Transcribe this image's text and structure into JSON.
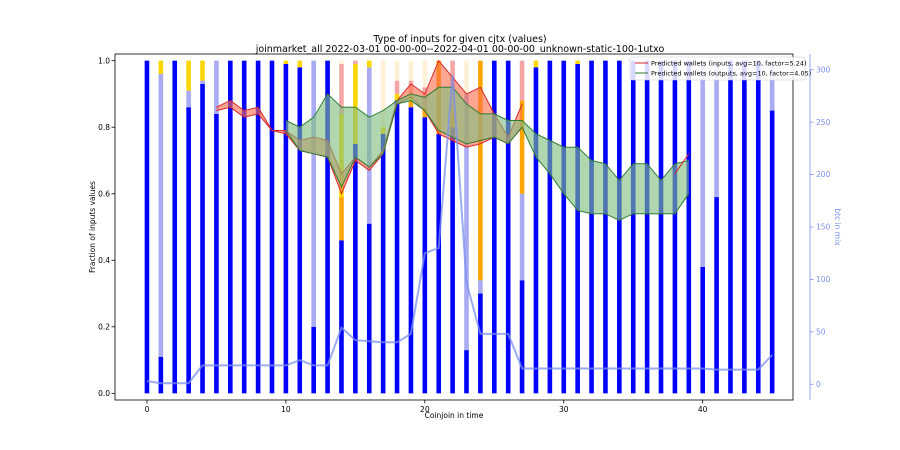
{
  "chart_data": {
    "type": "bar",
    "title": "Type of inputs for given cjtx (values)",
    "subtitle": "joinmarket_all 2022-03-01 00-00-00--2022-04-01 00-00-00_unknown-static-100-1utxo",
    "xlabel": "Coinjoin in time",
    "ylabel": "Fraction of inputs values",
    "y2label": "btc in mix",
    "xlim": [
      -2.3,
      46.5
    ],
    "ylim": [
      -0.02,
      1.02
    ],
    "y2lim": [
      -15,
      315
    ],
    "xticks": [
      0,
      10,
      20,
      30,
      40
    ],
    "yticks": [
      0.0,
      0.2,
      0.4,
      0.6,
      0.8,
      1.0
    ],
    "y2ticks": [
      0,
      50,
      100,
      150,
      200,
      250,
      300
    ],
    "legend_position": "top-right",
    "legend": [
      "Predicted wallets (inputs, avg=10, factor=5.24)",
      "Predicted wallets (outputs, avg=10, factor=4.05)"
    ],
    "colors": {
      "fresh": "#0000ff",
      "remix": "#a9abf3",
      "friends": "#ffa500",
      "prior": "#fff1d6",
      "yellow": "#ffd700",
      "pink": "#f4a6a6",
      "inputs_line": "#d62728",
      "inputs_fill": "#ff6f4f",
      "outputs_line": "#2e7d32",
      "outputs_fill": "#7fbf7f",
      "btc_line": "#7b90ee"
    },
    "stack_order": [
      "fresh",
      "remix",
      "friends",
      "yellow",
      "pink",
      "prior"
    ],
    "bars": [
      {
        "x": 0,
        "fresh": 1.0,
        "remix": 0,
        "friends": 0,
        "yellow": 0,
        "pink": 0,
        "prior": 0
      },
      {
        "x": 1,
        "fresh": 0.11,
        "remix": 0.85,
        "friends": 0,
        "yellow": 0.04,
        "pink": 0,
        "prior": 0
      },
      {
        "x": 2,
        "fresh": 1.0,
        "remix": 0,
        "friends": 0,
        "yellow": 0,
        "pink": 0,
        "prior": 0
      },
      {
        "x": 3,
        "fresh": 0.86,
        "remix": 0.05,
        "friends": 0,
        "yellow": 0.09,
        "pink": 0,
        "prior": 0
      },
      {
        "x": 4,
        "fresh": 0.93,
        "remix": 0.01,
        "friends": 0,
        "yellow": 0.06,
        "pink": 0,
        "prior": 0
      },
      {
        "x": 5,
        "fresh": 0.84,
        "remix": 0.16,
        "friends": 0,
        "yellow": 0,
        "pink": 0,
        "prior": 0
      },
      {
        "x": 6,
        "fresh": 1.0,
        "remix": 0,
        "friends": 0,
        "yellow": 0,
        "pink": 0,
        "prior": 0
      },
      {
        "x": 7,
        "fresh": 1.0,
        "remix": 0,
        "friends": 0,
        "yellow": 0,
        "pink": 0,
        "prior": 0
      },
      {
        "x": 8,
        "fresh": 1.0,
        "remix": 0,
        "friends": 0,
        "yellow": 0,
        "pink": 0,
        "prior": 0
      },
      {
        "x": 9,
        "fresh": 1.0,
        "remix": 0,
        "friends": 0,
        "yellow": 0,
        "pink": 0,
        "prior": 0
      },
      {
        "x": 10,
        "fresh": 0.99,
        "remix": 0,
        "friends": 0,
        "yellow": 0.01,
        "pink": 0,
        "prior": 0
      },
      {
        "x": 11,
        "fresh": 0.98,
        "remix": 0,
        "friends": 0,
        "yellow": 0.02,
        "pink": 0,
        "prior": 0
      },
      {
        "x": 12,
        "fresh": 0.2,
        "remix": 0.8,
        "friends": 0,
        "yellow": 0,
        "pink": 0,
        "prior": 0
      },
      {
        "x": 13,
        "fresh": 1.0,
        "remix": 0,
        "friends": 0,
        "yellow": 0,
        "pink": 0,
        "prior": 0
      },
      {
        "x": 14,
        "fresh": 0.46,
        "remix": 0,
        "friends": 0.13,
        "yellow": 0.25,
        "pink": 0.15,
        "prior": 0.01
      },
      {
        "x": 15,
        "fresh": 0.75,
        "remix": 0,
        "friends": 0,
        "yellow": 0.24,
        "pink": 0.01,
        "prior": 0
      },
      {
        "x": 16,
        "fresh": 0.51,
        "remix": 0.47,
        "friends": 0,
        "yellow": 0.02,
        "pink": 0,
        "prior": 0
      },
      {
        "x": 17,
        "fresh": 0.78,
        "remix": 0,
        "friends": 0,
        "yellow": 0.02,
        "pink": 0,
        "prior": 0.2
      },
      {
        "x": 18,
        "fresh": 0.88,
        "remix": 0,
        "friends": 0,
        "yellow": 0.02,
        "pink": 0.04,
        "prior": 0.06
      },
      {
        "x": 19,
        "fresh": 0.86,
        "remix": 0,
        "friends": 0.02,
        "yellow": 0.02,
        "pink": 0.04,
        "prior": 0.06
      },
      {
        "x": 20,
        "fresh": 0.83,
        "remix": 0,
        "friends": 0.03,
        "yellow": 0,
        "pink": 0.06,
        "prior": 0.08
      },
      {
        "x": 21,
        "fresh": 0.78,
        "remix": 0,
        "friends": 0.22,
        "yellow": 0,
        "pink": 0,
        "prior": 0
      },
      {
        "x": 22,
        "fresh": 0.8,
        "remix": 0,
        "friends": 0.05,
        "yellow": 0,
        "pink": 0.15,
        "prior": 0
      },
      {
        "x": 23,
        "fresh": 0.13,
        "remix": 0.77,
        "friends": 0,
        "yellow": 0,
        "pink": 0,
        "prior": 0.1
      },
      {
        "x": 24,
        "fresh": 0.3,
        "remix": 0.04,
        "friends": 0.66,
        "yellow": 0,
        "pink": 0,
        "prior": 0
      },
      {
        "x": 25,
        "fresh": 1.0,
        "remix": 0,
        "friends": 0,
        "yellow": 0,
        "pink": 0,
        "prior": 0
      },
      {
        "x": 26,
        "fresh": 1.0,
        "remix": 0,
        "friends": 0,
        "yellow": 0,
        "pink": 0,
        "prior": 0
      },
      {
        "x": 27,
        "fresh": 0.34,
        "remix": 0.26,
        "friends": 0.28,
        "yellow": 0,
        "pink": 0.12,
        "prior": 0
      },
      {
        "x": 28,
        "fresh": 0.98,
        "remix": 0,
        "friends": 0,
        "yellow": 0.02,
        "pink": 0,
        "prior": 0
      },
      {
        "x": 29,
        "fresh": 1.0,
        "remix": 0,
        "friends": 0,
        "yellow": 0,
        "pink": 0,
        "prior": 0
      },
      {
        "x": 30,
        "fresh": 1.0,
        "remix": 0,
        "friends": 0,
        "yellow": 0,
        "pink": 0,
        "prior": 0
      },
      {
        "x": 31,
        "fresh": 0.99,
        "remix": 0,
        "friends": 0,
        "yellow": 0.01,
        "pink": 0,
        "prior": 0
      },
      {
        "x": 32,
        "fresh": 1.0,
        "remix": 0,
        "friends": 0,
        "yellow": 0,
        "pink": 0,
        "prior": 0
      },
      {
        "x": 33,
        "fresh": 1.0,
        "remix": 0,
        "friends": 0,
        "yellow": 0,
        "pink": 0,
        "prior": 0
      },
      {
        "x": 34,
        "fresh": 1.0,
        "remix": 0,
        "friends": 0,
        "yellow": 0,
        "pink": 0,
        "prior": 0
      },
      {
        "x": 35,
        "fresh": 1.0,
        "remix": 0,
        "friends": 0,
        "yellow": 0,
        "pink": 0,
        "prior": 0
      },
      {
        "x": 36,
        "fresh": 1.0,
        "remix": 0,
        "friends": 0,
        "yellow": 0,
        "pink": 0,
        "prior": 0
      },
      {
        "x": 37,
        "fresh": 1.0,
        "remix": 0,
        "friends": 0,
        "yellow": 0,
        "pink": 0,
        "prior": 0
      },
      {
        "x": 38,
        "fresh": 1.0,
        "remix": 0,
        "friends": 0,
        "yellow": 0,
        "pink": 0,
        "prior": 0
      },
      {
        "x": 39,
        "fresh": 1.0,
        "remix": 0,
        "friends": 0,
        "yellow": 0,
        "pink": 0,
        "prior": 0
      },
      {
        "x": 40,
        "fresh": 0.38,
        "remix": 0.62,
        "friends": 0,
        "yellow": 0,
        "pink": 0,
        "prior": 0
      },
      {
        "x": 41,
        "fresh": 0.59,
        "remix": 0.41,
        "friends": 0,
        "yellow": 0,
        "pink": 0,
        "prior": 0
      },
      {
        "x": 42,
        "fresh": 1.0,
        "remix": 0,
        "friends": 0,
        "yellow": 0,
        "pink": 0,
        "prior": 0
      },
      {
        "x": 43,
        "fresh": 1.0,
        "remix": 0,
        "friends": 0,
        "yellow": 0,
        "pink": 0,
        "prior": 0
      },
      {
        "x": 44,
        "fresh": 1.0,
        "remix": 0,
        "friends": 0,
        "yellow": 0,
        "pink": 0,
        "prior": 0
      },
      {
        "x": 45,
        "fresh": 0.85,
        "remix": 0.15,
        "friends": 0,
        "yellow": 0,
        "pink": 0,
        "prior": 0
      }
    ],
    "inputs_band": {
      "x": [
        5,
        6,
        7,
        8,
        9,
        10,
        11,
        12,
        13,
        14,
        15,
        16,
        17,
        18,
        19,
        20,
        21,
        22,
        23,
        24,
        25,
        26,
        27
      ],
      "upper": [
        0.86,
        0.88,
        0.85,
        0.86,
        0.79,
        0.79,
        0.76,
        0.77,
        0.76,
        0.66,
        0.71,
        0.68,
        0.73,
        0.88,
        0.93,
        0.9,
        1.0,
        0.95,
        0.9,
        0.92,
        0.84,
        0.77,
        0.87
      ],
      "lower": [
        0.85,
        0.86,
        0.83,
        0.84,
        0.79,
        0.78,
        0.73,
        0.72,
        0.71,
        0.6,
        0.7,
        0.67,
        0.72,
        0.87,
        0.89,
        0.85,
        0.78,
        0.76,
        0.74,
        0.75,
        0.77,
        0.75,
        0.8
      ]
    },
    "outputs_band": {
      "x": [
        10,
        11,
        12,
        13,
        14,
        15,
        16,
        17,
        18,
        19,
        20,
        21,
        22,
        23,
        24,
        25,
        26,
        27,
        28,
        29,
        30,
        31,
        32,
        33,
        34,
        35,
        36,
        37,
        38,
        39
      ],
      "upper": [
        0.82,
        0.8,
        0.83,
        0.9,
        0.86,
        0.86,
        0.83,
        0.85,
        0.88,
        0.9,
        0.89,
        0.92,
        0.92,
        0.87,
        0.84,
        0.84,
        0.82,
        0.82,
        0.78,
        0.76,
        0.74,
        0.74,
        0.7,
        0.69,
        0.64,
        0.69,
        0.69,
        0.64,
        0.69,
        0.7
      ],
      "lower": [
        0.79,
        0.73,
        0.72,
        0.71,
        0.62,
        0.71,
        0.68,
        0.72,
        0.87,
        0.88,
        0.85,
        0.79,
        0.77,
        0.75,
        0.76,
        0.77,
        0.75,
        0.8,
        0.71,
        0.66,
        0.6,
        0.55,
        0.54,
        0.54,
        0.52,
        0.54,
        0.54,
        0.54,
        0.54,
        0.6
      ]
    },
    "inputs_tail": {
      "x": [
        38,
        39
      ],
      "y": [
        0.66,
        0.72
      ]
    },
    "btc_in_mix": {
      "x": [
        0,
        1,
        2,
        3,
        4,
        5,
        6,
        7,
        8,
        9,
        10,
        11,
        12,
        13,
        14,
        15,
        16,
        17,
        18,
        19,
        20,
        21,
        22,
        23,
        24,
        25,
        26,
        27,
        28,
        29,
        30,
        31,
        32,
        33,
        34,
        35,
        36,
        37,
        38,
        39,
        40,
        41,
        42,
        43,
        44,
        45
      ],
      "y": [
        3,
        1,
        1,
        1,
        18,
        18,
        18,
        18,
        18,
        18,
        18,
        23,
        18,
        18,
        54,
        42,
        41,
        40,
        40,
        48,
        125,
        130,
        295,
        97,
        48,
        48,
        48,
        15,
        15,
        15,
        15,
        15,
        15,
        15,
        15,
        15,
        15,
        15,
        15,
        15,
        15,
        14,
        14,
        14,
        14,
        28
      ]
    }
  }
}
